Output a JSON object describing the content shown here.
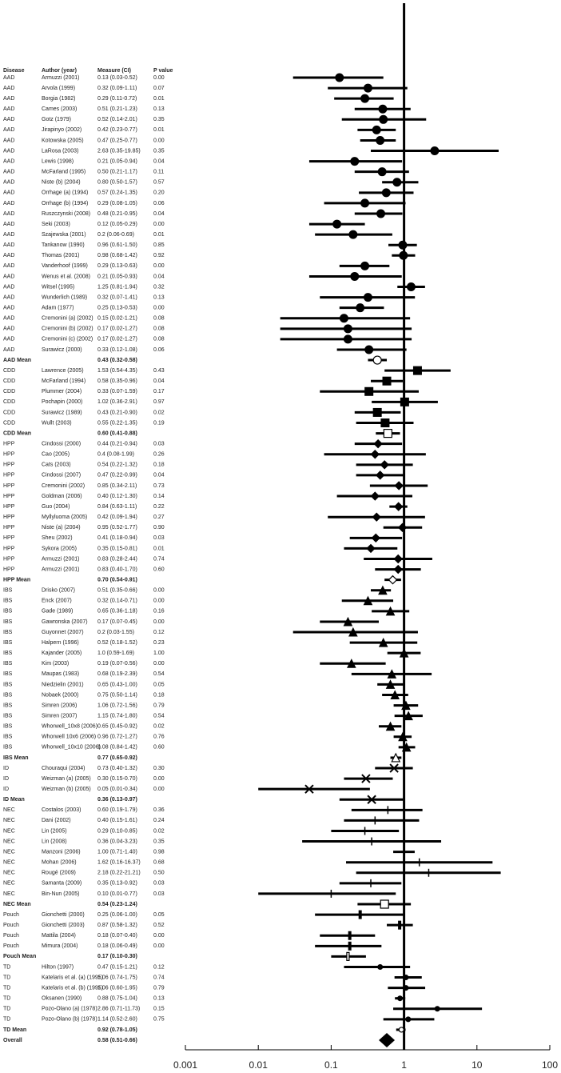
{
  "chart_data": {
    "type": "forest",
    "log": true,
    "xlim": [
      0.001,
      100
    ],
    "xticks": [
      0.001,
      0.01,
      0.1,
      1,
      10,
      100
    ],
    "ref_line": 1,
    "header": {
      "disease": "Disease",
      "author": "Author (year)",
      "measure": "Measure (CI)",
      "p": "P value"
    },
    "groups": [
      {
        "name": "AAD",
        "marker": "circle",
        "rows": [
          {
            "author": "Armuzzi (2001)",
            "measure": "0.13 (0.03-0.52)",
            "p": "0.00",
            "est": 0.13,
            "lo": 0.03,
            "hi": 0.52
          },
          {
            "author": "Arvola (1999)",
            "measure": "0.32 (0.09-1.11)",
            "p": "0.07",
            "est": 0.32,
            "lo": 0.09,
            "hi": 1.11
          },
          {
            "author": "Borgia (1982)",
            "measure": "0.29 (0.11-0.72)",
            "p": "0.01",
            "est": 0.29,
            "lo": 0.11,
            "hi": 0.72
          },
          {
            "author": "Cames (2003)",
            "measure": "0.51 (0.21-1.23)",
            "p": "0.13",
            "est": 0.51,
            "lo": 0.21,
            "hi": 1.23
          },
          {
            "author": "Gotz (1979)",
            "measure": "0.52 (0.14-2.01)",
            "p": "0.35",
            "est": 0.52,
            "lo": 0.14,
            "hi": 2.01
          },
          {
            "author": "Jirapinyo (2002)",
            "measure": "0.42 (0.23-0.77)",
            "p": "0.01",
            "est": 0.42,
            "lo": 0.23,
            "hi": 0.77
          },
          {
            "author": "Kotowska (2005)",
            "measure": "0.47 (0.25-0.77)",
            "p": "0.00",
            "est": 0.47,
            "lo": 0.25,
            "hi": 0.77
          },
          {
            "author": "LaRosa (2003)",
            "measure": "2.63 (0.35-19.85)",
            "p": "0.35",
            "est": 2.63,
            "lo": 0.35,
            "hi": 19.85
          },
          {
            "author": "Lewis (1998)",
            "measure": "0.21 (0.05-0.94)",
            "p": "0.04",
            "est": 0.21,
            "lo": 0.05,
            "hi": 0.94
          },
          {
            "author": "McFarland (1995)",
            "measure": "0.50 (0.21-1.17)",
            "p": "0.11",
            "est": 0.5,
            "lo": 0.21,
            "hi": 1.17
          },
          {
            "author": "Niste (b) (2004)",
            "measure": "0.80 (0.50-1.57)",
            "p": "0.57",
            "est": 0.8,
            "lo": 0.5,
            "hi": 1.57
          },
          {
            "author": "Orrhage (a) (1994)",
            "measure": "0.57 (0.24-1.35)",
            "p": "0.20",
            "est": 0.57,
            "lo": 0.24,
            "hi": 1.35
          },
          {
            "author": "Orrhage (b) (1994)",
            "measure": "0.29 (0.08-1.05)",
            "p": "0.06",
            "est": 0.29,
            "lo": 0.08,
            "hi": 1.05
          },
          {
            "author": "Ruszczynski (2008)",
            "measure": "0.48 (0.21-0.95)",
            "p": "0.04",
            "est": 0.48,
            "lo": 0.21,
            "hi": 0.95
          },
          {
            "author": "Seki (2003)",
            "measure": "0.12 (0.05-0.29)",
            "p": "0.00",
            "est": 0.12,
            "lo": 0.05,
            "hi": 0.29
          },
          {
            "author": "Szajewska (2001)",
            "measure": "0.2 (0.06-0.69)",
            "p": "0.01",
            "est": 0.2,
            "lo": 0.06,
            "hi": 0.69
          },
          {
            "author": "Tankanow (1990)",
            "measure": "0.96 (0.61-1.50)",
            "p": "0.85",
            "est": 0.96,
            "lo": 0.61,
            "hi": 1.5
          },
          {
            "author": "Thomas (2001)",
            "measure": "0.98 (0.68-1.42)",
            "p": "0.92",
            "est": 0.98,
            "lo": 0.68,
            "hi": 1.42
          },
          {
            "author": "Vanderhoof (1999)",
            "measure": "0.29 (0.13-0.63)",
            "p": "0.00",
            "est": 0.29,
            "lo": 0.13,
            "hi": 0.63
          },
          {
            "author": "Wenus et al. (2008)",
            "measure": "0.21 (0.05-0.93)",
            "p": "0.04",
            "est": 0.21,
            "lo": 0.05,
            "hi": 0.93
          },
          {
            "author": "Witsel (1995)",
            "measure": "1.25 (0.81-1.94)",
            "p": "0.32",
            "est": 1.25,
            "lo": 0.81,
            "hi": 1.94
          },
          {
            "author": "Wunderlich (1989)",
            "measure": "0.32 (0.07-1.41)",
            "p": "0.13",
            "est": 0.32,
            "lo": 0.07,
            "hi": 1.41
          },
          {
            "author": "Adam (1977)",
            "measure": "0.25 (0.13-0.53)",
            "p": "0.00",
            "est": 0.25,
            "lo": 0.13,
            "hi": 0.53
          },
          {
            "author": "Cremonini (a) (2002)",
            "measure": "0.15 (0.02-1.21)",
            "p": "0.08",
            "est": 0.15,
            "lo": 0.02,
            "hi": 1.21
          },
          {
            "author": "Cremonini (b) (2002)",
            "measure": "0.17 (0.02-1.27)",
            "p": "0.08",
            "est": 0.17,
            "lo": 0.02,
            "hi": 1.27
          },
          {
            "author": "Cremonini (c) (2002)",
            "measure": "0.17 (0.02-1.27)",
            "p": "0.08",
            "est": 0.17,
            "lo": 0.02,
            "hi": 1.27
          },
          {
            "author": "Surawicz (2000)",
            "measure": "0.33 (0.12-1.08)",
            "p": "0.06",
            "est": 0.33,
            "lo": 0.12,
            "hi": 1.08
          }
        ],
        "mean": {
          "label": "AAD Mean",
          "measure": "0.43 (0.32-0.58)",
          "est": 0.43,
          "lo": 0.32,
          "hi": 0.58
        }
      },
      {
        "name": "CDD",
        "marker": "square",
        "rows": [
          {
            "author": "Lawrence (2005)",
            "measure": "1.53 (0.54-4.35)",
            "p": "0.43",
            "est": 1.53,
            "lo": 0.54,
            "hi": 4.35
          },
          {
            "author": "McFarland (1994)",
            "measure": "0.58 (0.35-0.96)",
            "p": "0.04",
            "est": 0.58,
            "lo": 0.35,
            "hi": 0.96
          },
          {
            "author": "Plummer (2004)",
            "measure": "0.33 (0.07-1.59)",
            "p": "0.17",
            "est": 0.33,
            "lo": 0.07,
            "hi": 1.59
          },
          {
            "author": "Pochapin (2000)",
            "measure": "1.02 (0.36-2.91)",
            "p": "0.97",
            "est": 1.02,
            "lo": 0.36,
            "hi": 2.91
          },
          {
            "author": "Surawicz (1989)",
            "measure": "0.43 (0.21-0.90)",
            "p": "0.02",
            "est": 0.43,
            "lo": 0.21,
            "hi": 0.9
          },
          {
            "author": "Wullt (2003)",
            "measure": "0.55 (0.22-1.35)",
            "p": "0.19",
            "est": 0.55,
            "lo": 0.22,
            "hi": 1.35
          }
        ],
        "mean": {
          "label": "CDD Mean",
          "measure": "0.60 (0.41-0.88)",
          "est": 0.6,
          "lo": 0.41,
          "hi": 0.88
        }
      },
      {
        "name": "HPP",
        "marker": "diamond",
        "rows": [
          {
            "author": "Cindossi (2000)",
            "measure": "0.44 (0.21-0.94)",
            "p": "0.03",
            "est": 0.44,
            "lo": 0.21,
            "hi": 0.94
          },
          {
            "author": "Cao (2005)",
            "measure": "0.4 (0.08-1.99)",
            "p": "0.26",
            "est": 0.4,
            "lo": 0.08,
            "hi": 1.99
          },
          {
            "author": "Cats (2003)",
            "measure": "0.54 (0.22-1.32)",
            "p": "0.18",
            "est": 0.54,
            "lo": 0.22,
            "hi": 1.32
          },
          {
            "author": "Cindossi (2007)",
            "measure": "0.47 (0.22-0.99)",
            "p": "0.04",
            "est": 0.47,
            "lo": 0.22,
            "hi": 0.99
          },
          {
            "author": "Cremonini (2002)",
            "measure": "0.85 (0.34-2.11)",
            "p": "0.73",
            "est": 0.85,
            "lo": 0.34,
            "hi": 2.11
          },
          {
            "author": "Goldman (2006)",
            "measure": "0.40 (0.12-1.30)",
            "p": "0.14",
            "est": 0.4,
            "lo": 0.12,
            "hi": 1.3
          },
          {
            "author": "Guo (2004)",
            "measure": "0.84 (0.63-1.11)",
            "p": "0.22",
            "est": 0.84,
            "lo": 0.63,
            "hi": 1.11
          },
          {
            "author": "Myllyluoma (2005)",
            "measure": "0.42 (0.09-1.94)",
            "p": "0.27",
            "est": 0.42,
            "lo": 0.09,
            "hi": 1.94
          },
          {
            "author": "Niste (a) (2004)",
            "measure": "0.95 (0.52-1.77)",
            "p": "0.90",
            "est": 0.95,
            "lo": 0.52,
            "hi": 1.77
          },
          {
            "author": "Sheu (2002)",
            "measure": "0.41 (0.18-0.94)",
            "p": "0.03",
            "est": 0.41,
            "lo": 0.18,
            "hi": 0.94
          },
          {
            "author": "Sykora (2005)",
            "measure": "0.35 (0.15-0.81)",
            "p": "0.01",
            "est": 0.35,
            "lo": 0.15,
            "hi": 0.81
          },
          {
            "author": "Armuzzi (2001)",
            "measure": "0.83 (0.28-2.44)",
            "p": "0.74",
            "est": 0.83,
            "lo": 0.28,
            "hi": 2.44
          },
          {
            "author": "Armuzzi (2001)",
            "measure": "0.83 (0.40-1.70)",
            "p": "0.60",
            "est": 0.83,
            "lo": 0.4,
            "hi": 1.7
          }
        ],
        "mean": {
          "label": "HPP Mean",
          "measure": "0.70 (0.54-0.91)",
          "est": 0.7,
          "lo": 0.54,
          "hi": 0.91
        }
      },
      {
        "name": "IBS",
        "marker": "triangle",
        "rows": [
          {
            "author": "Drisko (2007)",
            "measure": "0.51 (0.35-0.66)",
            "p": "0.00",
            "est": 0.51,
            "lo": 0.35,
            "hi": 0.66
          },
          {
            "author": "Enck (2007)",
            "measure": "0.32 (0.14-0.71)",
            "p": "0.00",
            "est": 0.32,
            "lo": 0.14,
            "hi": 0.71
          },
          {
            "author": "Gade (1989)",
            "measure": "0.65 (0.36-1.18)",
            "p": "0.16",
            "est": 0.65,
            "lo": 0.36,
            "hi": 1.18
          },
          {
            "author": "Gawronska (2007)",
            "measure": "0.17 (0.07-0.45)",
            "p": "0.00",
            "est": 0.17,
            "lo": 0.07,
            "hi": 0.45
          },
          {
            "author": "Guyonnet (2007)",
            "measure": "0.2 (0.03-1.55)",
            "p": "0.12",
            "est": 0.2,
            "lo": 0.03,
            "hi": 1.55
          },
          {
            "author": "Halpern (1996)",
            "measure": "0.52 (0.18-1.52)",
            "p": "0.23",
            "est": 0.52,
            "lo": 0.18,
            "hi": 1.52
          },
          {
            "author": "Kajander (2005)",
            "measure": "1.0 (0.59-1.69)",
            "p": "1.00",
            "est": 1.0,
            "lo": 0.59,
            "hi": 1.69
          },
          {
            "author": "Kim (2003)",
            "measure": "0.19 (0.07-0.56)",
            "p": "0.00",
            "est": 0.19,
            "lo": 0.07,
            "hi": 0.56
          },
          {
            "author": "Maupas (1983)",
            "measure": "0.68 (0.19-2.39)",
            "p": "0.54",
            "est": 0.68,
            "lo": 0.19,
            "hi": 2.39
          },
          {
            "author": "Niedzielin (2001)",
            "measure": "0.65 (0.43-1.00)",
            "p": "0.05",
            "est": 0.65,
            "lo": 0.43,
            "hi": 1.0
          },
          {
            "author": "Nobaek (2000)",
            "measure": "0.75 (0.50-1.14)",
            "p": "0.18",
            "est": 0.75,
            "lo": 0.5,
            "hi": 1.14
          },
          {
            "author": "Simren (2006)",
            "measure": "1.06 (0.72-1.56)",
            "p": "0.79",
            "est": 1.06,
            "lo": 0.72,
            "hi": 1.56
          },
          {
            "author": "Simren (2007)",
            "measure": "1.15 (0.74-1.80)",
            "p": "0.54",
            "est": 1.15,
            "lo": 0.74,
            "hi": 1.8
          },
          {
            "author": "Whorwell_10x8 (2006)",
            "measure": "0.65 (0.45-0.92)",
            "p": "0.02",
            "est": 0.65,
            "lo": 0.45,
            "hi": 0.92
          },
          {
            "author": "Whorwell 10x6 (2006)",
            "measure": "0.96 (0.72-1.27)",
            "p": "0.76",
            "est": 0.96,
            "lo": 0.72,
            "hi": 1.27
          },
          {
            "author": "Whorwell_10x10 (2006)",
            "measure": "1.08 (0.84-1.42)",
            "p": "0.60",
            "est": 1.08,
            "lo": 0.84,
            "hi": 1.42
          }
        ],
        "mean": {
          "label": "IBS Mean",
          "measure": "0.77 (0.65-0.92)",
          "est": 0.77,
          "lo": 0.65,
          "hi": 0.92
        }
      },
      {
        "name": "ID",
        "marker": "cross",
        "rows": [
          {
            "author": "Chouraqui (2004)",
            "measure": "0.73 (0.40-1.32)",
            "p": "0.30",
            "est": 0.73,
            "lo": 0.4,
            "hi": 1.32
          },
          {
            "author": "Weizman (a) (2005)",
            "measure": "0.30 (0.15-0.70)",
            "p": "0.00",
            "est": 0.3,
            "lo": 0.15,
            "hi": 0.7
          },
          {
            "author": "Weizman (b) (2005)",
            "measure": "0.05 (0.01-0.34)",
            "p": "0.00",
            "est": 0.05,
            "lo": 0.01,
            "hi": 0.34
          }
        ],
        "mean": {
          "label": "ID Mean",
          "measure": "0.36 (0.13-0.97)",
          "est": 0.36,
          "lo": 0.13,
          "hi": 0.97
        }
      },
      {
        "name": "NEC",
        "marker": "plus",
        "rows": [
          {
            "author": "Costalos (2003)",
            "measure": "0.60 (0.19-1.79)",
            "p": "0.36",
            "est": 0.6,
            "lo": 0.19,
            "hi": 1.79
          },
          {
            "author": "Dani (2002)",
            "measure": "0.40 (0.15-1.61)",
            "p": "0.24",
            "est": 0.4,
            "lo": 0.15,
            "hi": 1.61
          },
          {
            "author": "Lin (2005)",
            "measure": "0.29 (0.10-0.85)",
            "p": "0.02",
            "est": 0.29,
            "lo": 0.1,
            "hi": 0.85
          },
          {
            "author": "Lin (2008)",
            "measure": "0.36 (0.04-3.23)",
            "p": "0.35",
            "est": 0.36,
            "lo": 0.04,
            "hi": 3.23
          },
          {
            "author": "Manzoni (2006)",
            "measure": "1.00 (0.71-1.40)",
            "p": "0.98",
            "est": 1.0,
            "lo": 0.71,
            "hi": 1.4
          },
          {
            "author": "Mohan (2006)",
            "measure": "1.62 (0.16-16.37)",
            "p": "0.68",
            "est": 1.62,
            "lo": 0.16,
            "hi": 16.37
          },
          {
            "author": "Rougé (2009)",
            "measure": "2.18 (0.22-21.21)",
            "p": "0.50",
            "est": 2.18,
            "lo": 0.22,
            "hi": 21.21
          },
          {
            "author": "Samanta (2009)",
            "measure": "0.35 (0.13-0.92)",
            "p": "0.03",
            "est": 0.35,
            "lo": 0.13,
            "hi": 0.92
          },
          {
            "author": "Bin-Nun (2005)",
            "measure": "0.10 (0.01-0.77)",
            "p": "0.03",
            "est": 0.1,
            "lo": 0.01,
            "hi": 0.77
          }
        ],
        "mean": {
          "label": "NEC Mean",
          "measure": "0.54 (0.23-1.24)",
          "est": 0.54,
          "lo": 0.23,
          "hi": 1.24
        }
      },
      {
        "name": "Pouch",
        "marker": "bar",
        "rows": [
          {
            "author": "Gionchetti (2000)",
            "measure": "0.25 (0.06-1.00)",
            "p": "0.05",
            "est": 0.25,
            "lo": 0.06,
            "hi": 1.0
          },
          {
            "author": "Gionchetti (2003)",
            "measure": "0.87 (0.58-1.32)",
            "p": "0.52",
            "est": 0.87,
            "lo": 0.58,
            "hi": 1.32
          },
          {
            "author": "Mattila (2004)",
            "measure": "0.18 (0.07-0.40)",
            "p": "0.00",
            "est": 0.18,
            "lo": 0.07,
            "hi": 0.4
          },
          {
            "author": "Mimura (2004)",
            "measure": "0.18 (0.06-0.49)",
            "p": "0.00",
            "est": 0.18,
            "lo": 0.06,
            "hi": 0.49
          }
        ],
        "mean": {
          "label": "Pouch Mean",
          "measure": "0.17 (0.10-0.30)",
          "est": 0.17,
          "lo": 0.1,
          "hi": 0.3
        }
      },
      {
        "name": "TD",
        "marker": "dot",
        "rows": [
          {
            "author": "Hilton (1997)",
            "measure": "0.47 (0.15-1.21)",
            "p": "0.12",
            "est": 0.47,
            "lo": 0.15,
            "hi": 1.21
          },
          {
            "author": "Katelaris et al. (a) (1995)",
            "measure": "1.06 (0.74-1.75)",
            "p": "0.74",
            "est": 1.06,
            "lo": 0.74,
            "hi": 1.75
          },
          {
            "author": "Katelaris et al. (b) (1995)",
            "measure": "1.06 (0.60-1.95)",
            "p": "0.79",
            "est": 1.06,
            "lo": 0.6,
            "hi": 1.95
          },
          {
            "author": "Oksanen (1990)",
            "measure": "0.88 (0.75-1.04)",
            "p": "0.13",
            "est": 0.88,
            "lo": 0.75,
            "hi": 1.04
          },
          {
            "author": "Pozo-Olano (a) (1978)",
            "measure": "2.86 (0.71-11.73)",
            "p": "0.15",
            "est": 2.86,
            "lo": 0.71,
            "hi": 11.73
          },
          {
            "author": "Pozo-Olano (b) (1978)",
            "measure": "1.14 (0.52-2.60)",
            "p": "0.75",
            "est": 1.14,
            "lo": 0.52,
            "hi": 2.6
          }
        ],
        "mean": {
          "label": "TD Mean",
          "measure": "0.92 (0.78-1.05)",
          "est": 0.92,
          "lo": 0.78,
          "hi": 1.05
        }
      }
    ],
    "overall": {
      "label": "Overall",
      "measure": "0.58 (0.51-0.66)",
      "est": 0.58,
      "lo": 0.51,
      "hi": 0.66
    }
  }
}
